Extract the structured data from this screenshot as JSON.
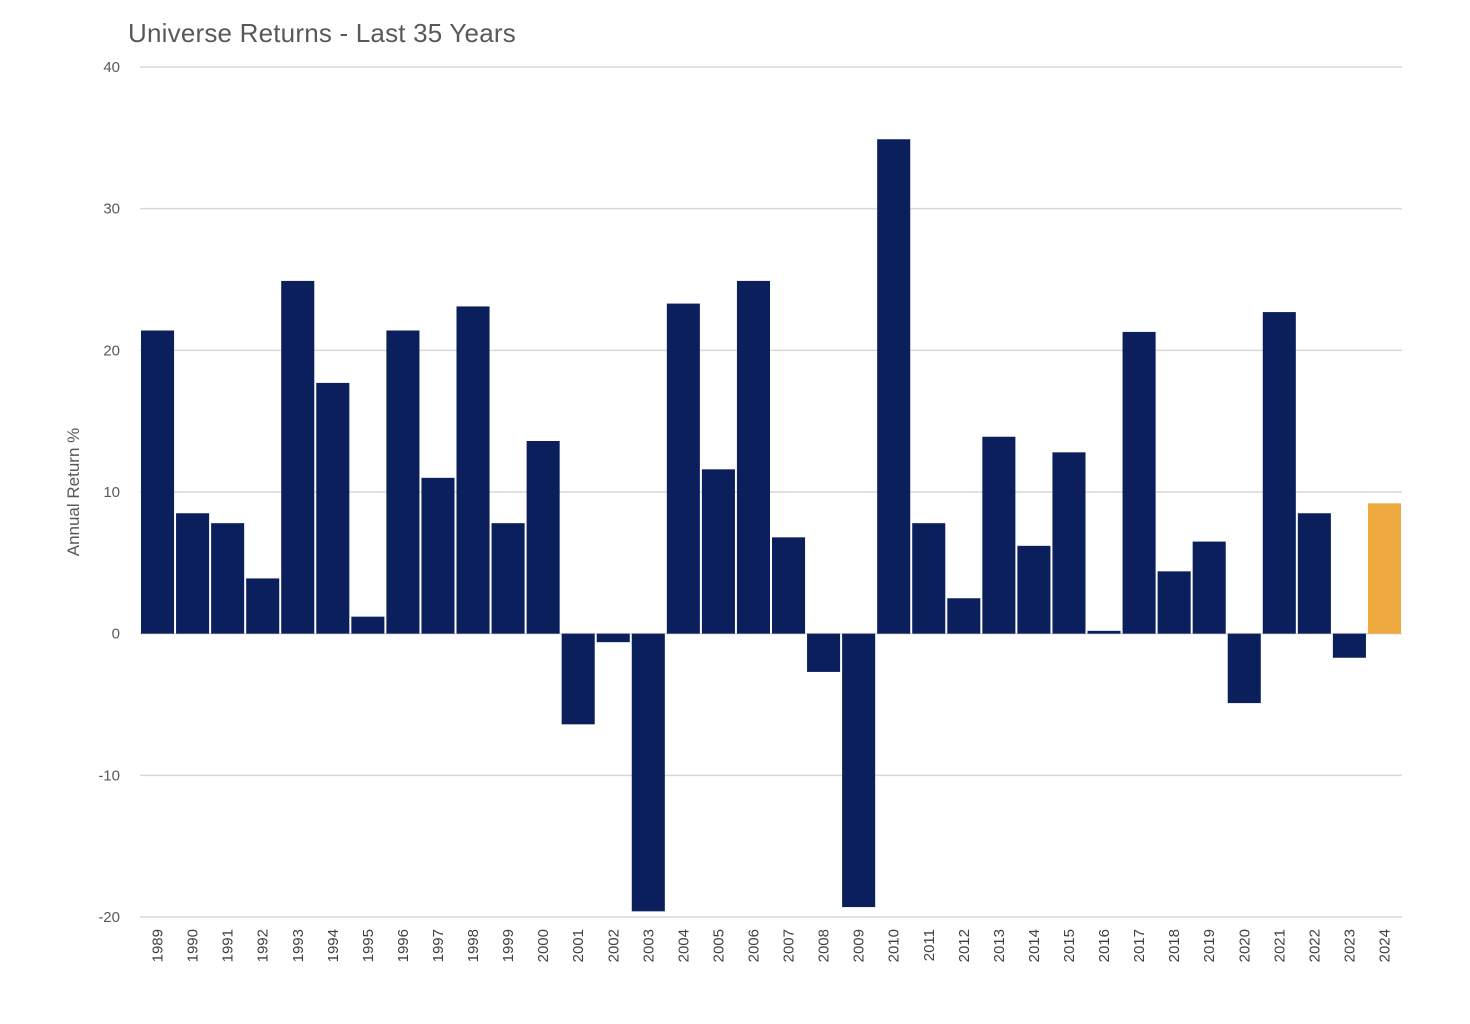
{
  "chart_data": {
    "type": "bar",
    "title": "Universe Returns - Last 35 Years",
    "xlabel": "",
    "ylabel": "Annual Return %",
    "ylim": [
      -20,
      40
    ],
    "yticks": [
      40,
      30,
      20,
      10,
      0,
      -10,
      -20
    ],
    "grid": true,
    "legend": "none",
    "colors": {
      "default": "#0b1f5c",
      "highlight": "#eda93d",
      "grid": "#d9d9d9"
    },
    "highlight_category": "2024",
    "categories": [
      "1989",
      "1990",
      "1991",
      "1992",
      "1993",
      "1994",
      "1995",
      "1996",
      "1997",
      "1998",
      "1999",
      "2000",
      "2001",
      "2002",
      "2003",
      "2004",
      "2005",
      "2006",
      "2007",
      "2008",
      "2009",
      "2010",
      "2011",
      "2012",
      "2013",
      "2014",
      "2015",
      "2016",
      "2017",
      "2018",
      "2019",
      "2020",
      "2021",
      "2022",
      "2023",
      "2024"
    ],
    "values": [
      21.4,
      8.5,
      7.8,
      3.9,
      24.9,
      17.7,
      1.2,
      21.4,
      11.0,
      23.1,
      7.8,
      13.6,
      -6.4,
      -0.6,
      -19.6,
      23.3,
      11.6,
      24.9,
      6.8,
      -2.7,
      -19.3,
      34.9,
      7.8,
      2.5,
      13.9,
      6.2,
      12.8,
      0.2,
      21.3,
      4.4,
      6.5,
      -4.9,
      22.7,
      8.5,
      -1.7,
      9.2
    ]
  }
}
